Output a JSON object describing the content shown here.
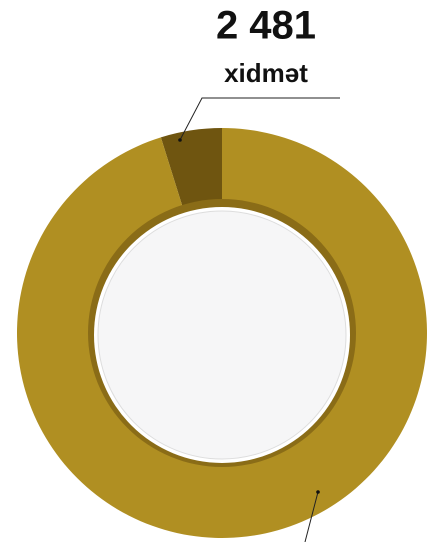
{
  "chart_data": {
    "type": "donut",
    "categories": [
      null,
      null
    ],
    "series": [
      {
        "values": [
          2481,
          49000
        ],
        "value_labels": [
          "2 481",
          null
        ],
        "colors": [
          "#6f5510",
          "#b08f22"
        ]
      }
    ],
    "unit_label": "xidmət"
  }
}
